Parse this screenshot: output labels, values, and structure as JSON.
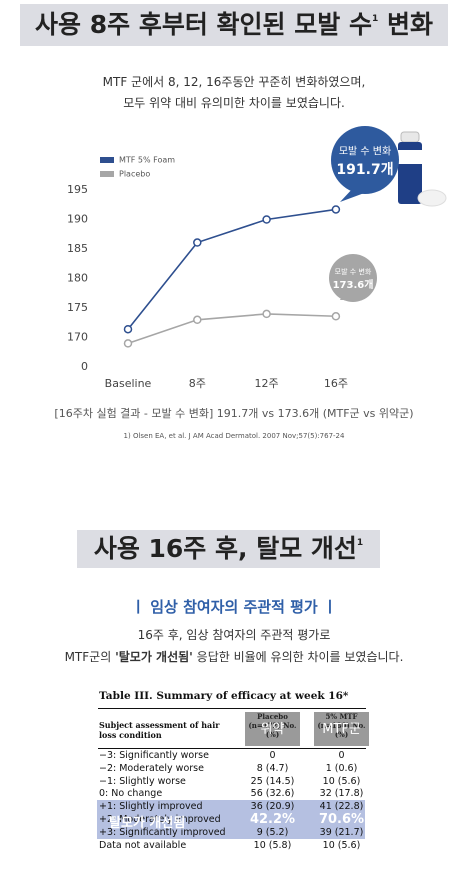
{
  "section1": {
    "title": "사용 8주 후부터 확인된 모발 수",
    "title_sup": "1",
    "title_end": " 변화",
    "intro": [
      "MTF 군에서 8, 12, 16주동안 꾸준히 변화하였으며,",
      "모두 위약 대비 유의미한 차이를 보였습니다."
    ],
    "caption": "[16주차 실험 결과 - 모발 수 변화] 191.7개 vs 173.6개 (MTF군 vs 위약군)",
    "reference": "1) Olsen EA, et al. J AM Acad Dermatol. 2007 Nov;57(5):767-24"
  },
  "chart_data": {
    "type": "line",
    "categories": [
      "Baseline",
      "8주",
      "12주",
      "16주"
    ],
    "series": [
      {
        "name": "MTF 5% Foam",
        "color": "#2e4f8f",
        "values": [
          171.4,
          186.1,
          190,
          191.7
        ]
      },
      {
        "name": "Placebo",
        "color": "#a6a6a6",
        "values": [
          169,
          173,
          174,
          173.6
        ]
      }
    ],
    "ylim": [
      0,
      195
    ],
    "axis_break": [
      0,
      165
    ],
    "yticks": [
      0,
      170,
      175,
      180,
      185,
      190,
      195
    ],
    "grid": false,
    "legend": "top-left",
    "annotations": [
      {
        "label": "모발 수 변화",
        "text": "191.7개",
        "color": "#2e5a9e"
      },
      {
        "label": "모발 수 변화",
        "text": "173.6개",
        "color": "#a6a6a6"
      }
    ]
  },
  "section2": {
    "title": "사용 16주 후, 탈모 개선",
    "title_sup": "1",
    "subheading": "ㅣ 임상 참여자의 주관적 평가 ㅣ",
    "line1": "16주 후, 임상 참여자의 주관적 평가로",
    "line2_before": "MTF군의 ",
    "line2_bold": "'탈모가 개선됨'",
    "line2_after": " 응답한 비율에 유의한 차이를 보였습니다."
  },
  "table": {
    "title": "Table III. Summary of efficacy at week 16*",
    "headers": [
      "Subject assessment of hair loss condition",
      "Placebo (n=172) No. (%)",
      "5% MTF (n=180) No. (%)"
    ],
    "header_overlays": [
      "위약",
      "MTF군"
    ],
    "rows": [
      [
        "−3: Significantly worse",
        "0",
        "0"
      ],
      [
        "−2: Moderately worse",
        "8 (4.7)",
        "1 (0.6)"
      ],
      [
        "−1: Slightly worse",
        "25 (14.5)",
        "10 (5.6)"
      ],
      [
        "0: No change",
        "56 (32.6)",
        "32 (17.8)"
      ],
      [
        "+1: Slightly improved",
        "36 (20.9)",
        "41 (22.8)"
      ],
      [
        "+2: Moderately improved"
      ],
      [
        "+3: Significantly improved",
        "9 (5.2)",
        "39 (21.7)"
      ],
      [
        "Data not available",
        "10 (5.8)",
        "10 (5.6)"
      ]
    ],
    "overlay": [
      "탈모가 개선됨",
      "42.2%",
      "70.6%"
    ]
  }
}
